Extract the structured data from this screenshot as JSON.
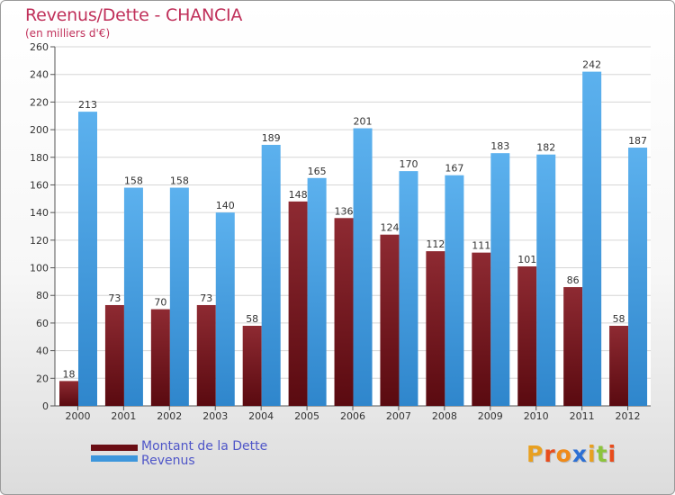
{
  "header": {
    "title": "Revenus/Dette - CHANCIA",
    "subtitle": "(en milliers d'€)"
  },
  "legend": [
    {
      "label": "Montant de la Dette",
      "color": "#6a0d14"
    },
    {
      "label": "Revenus",
      "color": "#3d96dc"
    }
  ],
  "logo": {
    "text": "Proxiti",
    "colors": [
      "#e8a020",
      "#e84c1c",
      "#f08a18",
      "#2c6fd4",
      "#e8a020",
      "#8cc43c",
      "#e84c1c"
    ]
  },
  "chart_data": {
    "type": "bar",
    "title": "Revenus/Dette - CHANCIA",
    "subtitle": "(en milliers d'€)",
    "categories": [
      "2000",
      "2001",
      "2002",
      "2003",
      "2004",
      "2005",
      "2006",
      "2007",
      "2008",
      "2009",
      "2010",
      "2011",
      "2012"
    ],
    "series": [
      {
        "name": "Montant de la Dette",
        "color": "#7a1a22",
        "values": [
          18,
          73,
          70,
          73,
          58,
          148,
          136,
          124,
          112,
          111,
          101,
          86,
          58
        ]
      },
      {
        "name": "Revenus",
        "color": "#4aa5e6",
        "values": [
          213,
          158,
          158,
          140,
          189,
          165,
          201,
          170,
          167,
          183,
          182,
          242,
          187
        ]
      }
    ],
    "ylim": [
      0,
      260
    ],
    "yticks": [
      0,
      20,
      40,
      60,
      80,
      100,
      120,
      140,
      160,
      180,
      200,
      220,
      240,
      260
    ],
    "grid": true,
    "legend_position": "bottom-left"
  }
}
